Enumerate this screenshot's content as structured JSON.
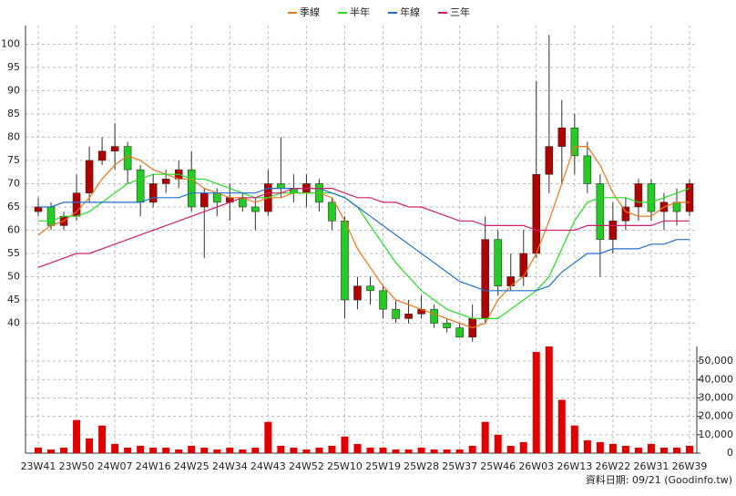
{
  "chart_data": {
    "type": "candlestick",
    "footer": "資料日期: 09/21  (Goodinfo.tw)",
    "categories": [
      "23W41",
      null,
      null,
      "23W50",
      null,
      null,
      "24W07",
      null,
      null,
      "24W16",
      null,
      null,
      "24W25",
      null,
      null,
      "24W34",
      null,
      null,
      "24W43",
      null,
      null,
      "24W52",
      null,
      null,
      "25W10",
      null,
      null,
      "25W19",
      null,
      null,
      "25W28",
      null,
      null,
      "25W37",
      null,
      null,
      "25W46",
      null,
      null,
      "26W03",
      null,
      null,
      "26W13",
      null,
      null,
      "26W22",
      null,
      null,
      "26W31",
      null,
      null,
      "26W39"
    ],
    "open": [
      64,
      65,
      61,
      63,
      68,
      75,
      77,
      78,
      73,
      66,
      70,
      71,
      73,
      65,
      68,
      66,
      67,
      65,
      64,
      70,
      69,
      68,
      70,
      66,
      62,
      45,
      48,
      47,
      43,
      41,
      42,
      43,
      40,
      39,
      37,
      41,
      58,
      48,
      50,
      55,
      72,
      78,
      82,
      76,
      70,
      58,
      62,
      65,
      70,
      64,
      66,
      64
    ],
    "high": [
      67,
      66,
      64,
      72,
      78,
      80,
      83,
      79,
      74,
      72,
      73,
      75,
      77,
      69,
      69,
      70,
      68,
      67,
      73,
      80,
      72,
      72,
      71,
      67,
      63,
      50,
      50,
      48,
      45,
      45,
      46,
      44,
      41,
      40,
      44,
      63,
      60,
      55,
      60,
      92,
      102,
      88,
      85,
      79,
      72,
      66,
      67,
      71,
      71,
      68,
      69,
      71
    ],
    "low": [
      63,
      60,
      60,
      62,
      66,
      74,
      73,
      70,
      63,
      65,
      68,
      69,
      64,
      54,
      63,
      62,
      64,
      60,
      63,
      67,
      66,
      65,
      64,
      60,
      41,
      43,
      44,
      41,
      40,
      40,
      41,
      39,
      38,
      37,
      36,
      40,
      46,
      47,
      48,
      54,
      68,
      70,
      72,
      68,
      50,
      55,
      60,
      62,
      62,
      60,
      61,
      63
    ],
    "close": [
      65,
      61,
      63,
      68,
      75,
      77,
      78,
      73,
      66,
      70,
      71,
      73,
      65,
      68,
      66,
      67,
      65,
      64,
      70,
      69,
      68,
      70,
      66,
      62,
      45,
      48,
      47,
      43,
      41,
      42,
      43,
      40,
      39,
      37,
      41,
      58,
      48,
      50,
      55,
      72,
      78,
      82,
      76,
      70,
      58,
      62,
      65,
      70,
      64,
      66,
      64,
      70
    ],
    "up_color": "#b00000",
    "down_color": "#22cc22",
    "volume": [
      3000,
      2000,
      3000,
      18000,
      8000,
      15000,
      5000,
      3000,
      4000,
      3000,
      3000,
      2000,
      4000,
      3000,
      2000,
      3000,
      2000,
      3000,
      17000,
      4000,
      3000,
      2000,
      3000,
      4000,
      9000,
      5000,
      3000,
      3000,
      2000,
      2000,
      3000,
      2000,
      2000,
      2000,
      4000,
      17000,
      10000,
      4000,
      6000,
      55000,
      58000,
      29000,
      15000,
      7000,
      6000,
      5000,
      4000,
      3000,
      5000,
      3000,
      3000,
      4000
    ],
    "volume_color": "#e00000",
    "series": [
      {
        "name": "季線",
        "color": "#e8761c",
        "values": [
          59,
          61,
          62,
          64,
          67,
          71,
          74,
          76,
          75,
          73,
          72,
          71,
          71,
          69,
          68,
          67,
          67,
          66,
          67,
          67,
          68,
          68,
          68,
          67,
          62,
          56,
          52,
          48,
          45,
          44,
          43,
          42,
          41,
          40,
          39,
          40,
          45,
          48,
          50,
          55,
          62,
          70,
          78,
          78,
          74,
          68,
          64,
          63,
          63,
          65,
          66,
          66
        ]
      },
      {
        "name": "半年",
        "color": "#22dd22",
        "values": [
          62,
          62,
          63,
          63,
          64,
          66,
          68,
          70,
          71,
          72,
          72,
          72,
          71,
          71,
          70,
          69,
          68,
          67,
          67,
          68,
          68,
          68,
          68,
          68,
          67,
          65,
          61,
          57,
          53,
          50,
          47,
          45,
          43,
          42,
          41,
          41,
          41,
          43,
          45,
          47,
          50,
          56,
          62,
          66,
          67,
          67,
          67,
          66,
          66,
          67,
          68,
          69
        ]
      },
      {
        "name": "年線",
        "color": "#1f6fd0",
        "values": [
          65,
          65,
          66,
          66,
          66,
          66,
          66,
          66,
          66,
          67,
          67,
          67,
          68,
          68,
          68,
          68,
          68,
          68,
          69,
          69,
          69,
          69,
          69,
          68,
          67,
          65,
          63,
          61,
          59,
          57,
          55,
          53,
          51,
          49,
          48,
          47,
          47,
          47,
          47,
          47,
          48,
          51,
          53,
          55,
          55,
          56,
          56,
          56,
          57,
          57,
          58,
          58
        ]
      },
      {
        "name": "三年",
        "color": "#d0206a",
        "values": [
          52,
          53,
          54,
          55,
          55,
          56,
          57,
          58,
          59,
          60,
          61,
          62,
          63,
          64,
          65,
          66,
          67,
          67,
          68,
          68,
          69,
          69,
          69,
          69,
          68,
          67,
          67,
          66,
          66,
          65,
          65,
          64,
          63,
          62,
          62,
          61,
          61,
          61,
          61,
          60,
          60,
          60,
          60,
          61,
          61,
          61,
          61,
          61,
          61,
          62,
          62,
          62
        ]
      }
    ],
    "ylim": [
      35,
      104
    ],
    "yticks": [
      40,
      45,
      50,
      55,
      60,
      65,
      70,
      75,
      80,
      85,
      90,
      95,
      100
    ],
    "y2lim": [
      0,
      58000
    ],
    "y2ticks": [
      0,
      {
        "value": 10000,
        "label": "10,000"
      },
      {
        "value": 20000,
        "label": "20,000"
      },
      {
        "value": 30000,
        "label": "30,000"
      },
      {
        "value": 40000,
        "label": "40,000"
      },
      {
        "value": 50000,
        "label": "50,000"
      }
    ],
    "grid": true
  }
}
